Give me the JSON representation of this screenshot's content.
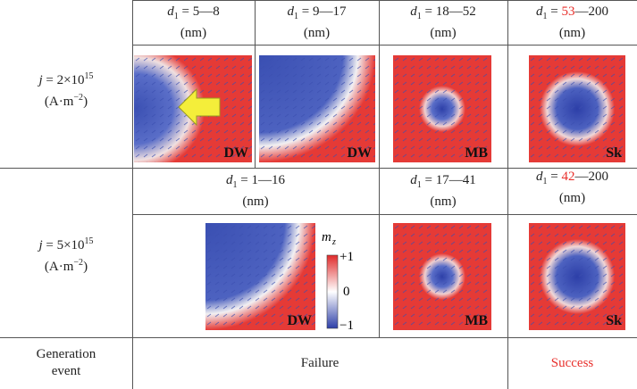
{
  "common": {
    "d": "d",
    "sub": "1",
    "eq": "=",
    "dash": "—",
    "unit": "(nm)",
    "j": "j",
    "times": "×",
    "base": "10",
    "exp": "15",
    "unit_j": "(A·m",
    "unit_j_exp": "−2",
    "close": ")",
    "highlight_color": "#e8302c"
  },
  "row1": {
    "mantissa": "2",
    "ranges": [
      {
        "from": "5",
        "to": "8"
      },
      {
        "from": "9",
        "to": "17"
      },
      {
        "from": "18",
        "to": "52"
      },
      {
        "from": "53",
        "to": "200",
        "highlight": true
      }
    ],
    "labels": [
      "DW",
      "DW",
      "MB",
      "Sk"
    ]
  },
  "row2": {
    "mantissa": "5",
    "ranges": [
      {
        "from": "1",
        "to": "16"
      },
      {
        "from": "17",
        "to": "41"
      },
      {
        "from": "42",
        "to": "200",
        "highlight": true
      }
    ],
    "labels": [
      "DW",
      "MB",
      "Sk"
    ]
  },
  "colorbar": {
    "symbol": "m",
    "sub": "z",
    "max": "+1",
    "mid": "0",
    "min": "−1"
  },
  "footer": {
    "label": "Generation event",
    "failure": "Failure",
    "success": "Success"
  }
}
